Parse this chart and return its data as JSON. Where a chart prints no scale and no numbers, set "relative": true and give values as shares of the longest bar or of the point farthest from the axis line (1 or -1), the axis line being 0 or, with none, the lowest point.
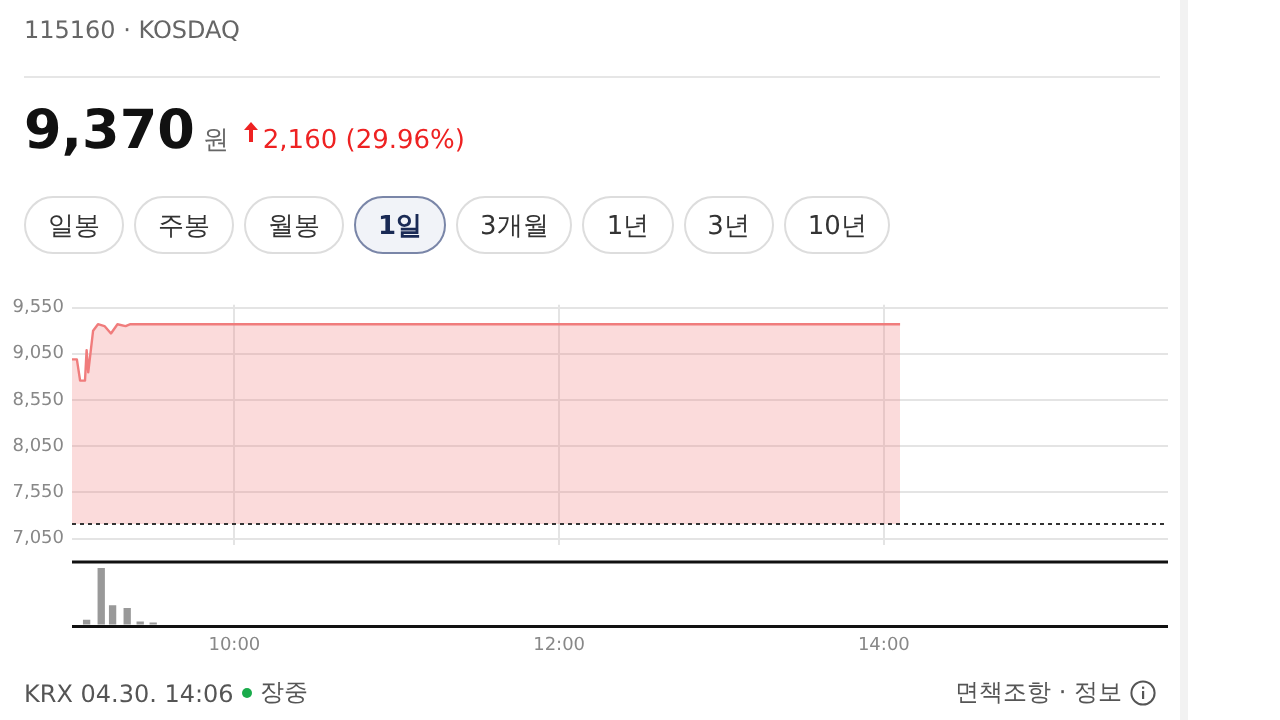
{
  "chart_data": [
    {
      "type": "other",
      "title": "9,370",
      "subtitle": "115160 · KOSDAQ",
      "annotations": [
        "원",
        "2,160 (29.96%)",
        "일봉",
        "주봉",
        "월봉",
        "1일",
        "3개월",
        "1년",
        "3년",
        "10년"
      ]
    },
    {
      "type": "area",
      "x": [
        9.0,
        9.03,
        9.05,
        9.08,
        9.09,
        9.1,
        9.13,
        9.16,
        9.2,
        9.24,
        9.28,
        9.33,
        9.36,
        14.1
      ],
      "values": [
        8990,
        8990,
        8760,
        8760,
        9090,
        8850,
        9300,
        9370,
        9350,
        9270,
        9370,
        9350,
        9370,
        9370
      ],
      "color": "#f07c7c",
      "xlim": [
        9,
        15.75
      ],
      "xticks": [
        {
          "value": 10,
          "label": null
        },
        {
          "value": 12,
          "label": null
        },
        {
          "value": 14,
          "label": null
        }
      ],
      "ylim": [
        6980,
        9580
      ],
      "yticks": [
        {
          "value": 7050,
          "label": "7,050"
        },
        {
          "value": 7550,
          "label": "7,550"
        },
        {
          "value": 8050,
          "label": "8,050"
        },
        {
          "value": 8550,
          "label": "8,550"
        },
        {
          "value": 9050,
          "label": "9,050"
        },
        {
          "value": 9550,
          "label": "9,550"
        }
      ],
      "ref_lines": [
        {
          "axis": "y",
          "value": 7210,
          "color": "#333333",
          "line_style": "dotted"
        }
      ],
      "grid": true,
      "tick_labels": "y",
      "legend": false
    },
    {
      "type": "bar",
      "x": [
        9.09,
        9.18,
        9.25,
        9.34,
        9.42,
        9.5
      ],
      "values": [
        0.07,
        1,
        0.33,
        0.28,
        0.04,
        0.02
      ],
      "relative": true,
      "color": "#999999",
      "xlim": [
        9,
        15.75
      ],
      "xticks": [
        {
          "value": 10,
          "label": "10:00"
        },
        {
          "value": 12,
          "label": "12:00"
        },
        {
          "value": 14,
          "label": "14:00"
        }
      ],
      "tick_labels": "x",
      "legend": false,
      "annotations": [
        "KRX 04.30. 14:06",
        "장중",
        "면책조항 · 정보"
      ]
    }
  ]
}
